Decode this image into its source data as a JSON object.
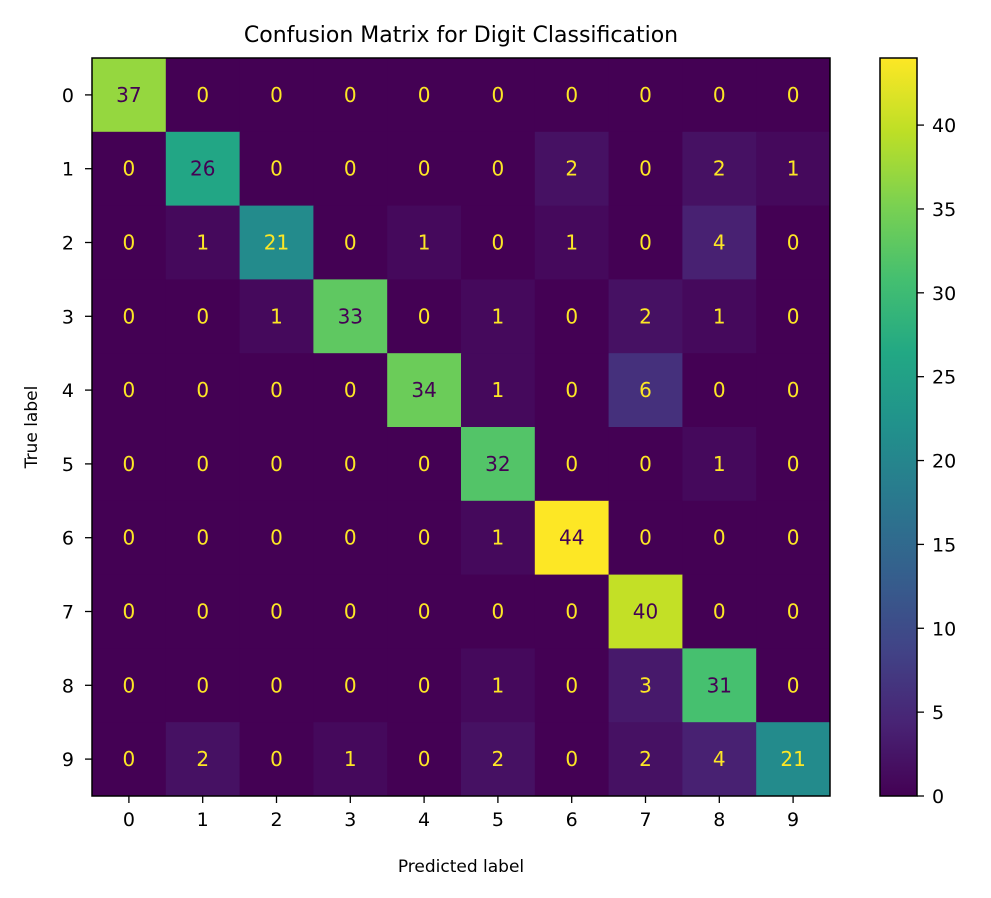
{
  "chart_data": {
    "type": "heatmap",
    "title": "Confusion Matrix for Digit Classification",
    "xlabel": "Predicted label",
    "ylabel": "True label",
    "x_categories": [
      "0",
      "1",
      "2",
      "3",
      "4",
      "5",
      "6",
      "7",
      "8",
      "9"
    ],
    "y_categories": [
      "0",
      "1",
      "2",
      "3",
      "4",
      "5",
      "6",
      "7",
      "8",
      "9"
    ],
    "values": [
      [
        37,
        0,
        0,
        0,
        0,
        0,
        0,
        0,
        0,
        0
      ],
      [
        0,
        26,
        0,
        0,
        0,
        0,
        2,
        0,
        2,
        1
      ],
      [
        0,
        1,
        21,
        0,
        1,
        0,
        1,
        0,
        4,
        0
      ],
      [
        0,
        0,
        1,
        33,
        0,
        1,
        0,
        2,
        1,
        0
      ],
      [
        0,
        0,
        0,
        0,
        34,
        1,
        0,
        6,
        0,
        0
      ],
      [
        0,
        0,
        0,
        0,
        0,
        32,
        0,
        0,
        1,
        0
      ],
      [
        0,
        0,
        0,
        0,
        0,
        1,
        44,
        0,
        0,
        0
      ],
      [
        0,
        0,
        0,
        0,
        0,
        0,
        0,
        40,
        0,
        0
      ],
      [
        0,
        0,
        0,
        0,
        0,
        1,
        0,
        3,
        31,
        0
      ],
      [
        0,
        2,
        0,
        1,
        0,
        2,
        0,
        2,
        4,
        21
      ]
    ],
    "colormap": "viridis",
    "color_range": [
      0,
      44
    ],
    "colorbar_ticks": [
      0,
      5,
      10,
      15,
      20,
      25,
      30,
      35,
      40
    ],
    "text_color_dark": "#440154",
    "text_color_light": "#fde725",
    "legend_position": "right"
  }
}
